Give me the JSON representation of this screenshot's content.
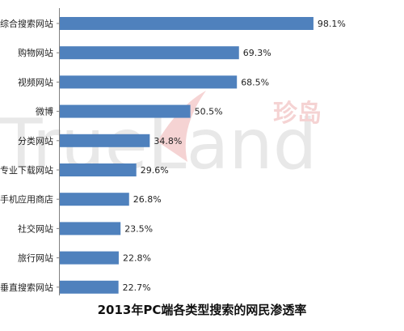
{
  "chart_data": {
    "type": "bar",
    "orientation": "horizontal",
    "title": "2013年PC端各类型搜索的网民渗透率",
    "categories": [
      "综合搜索网站",
      "购物网站",
      "视频网站",
      "微博",
      "分类网站",
      "专业下载网站",
      "手机应用商店",
      "社交网站",
      "旅行网站",
      "垂直搜索网站"
    ],
    "values": [
      98.1,
      69.3,
      68.5,
      50.5,
      34.8,
      29.6,
      26.8,
      23.5,
      22.8,
      22.7
    ],
    "value_labels": [
      "98.1%",
      "69.3%",
      "68.5%",
      "50.5%",
      "34.8%",
      "29.6%",
      "26.8%",
      "23.5%",
      "22.8%",
      "22.7%"
    ],
    "value_unit": "%",
    "xlim": [
      0,
      100
    ],
    "grid": false,
    "legend": "none",
    "bar_color": "#4f81bd"
  },
  "watermark": {
    "logo_text": "TrueLand",
    "logo_cn": "珍岛"
  }
}
